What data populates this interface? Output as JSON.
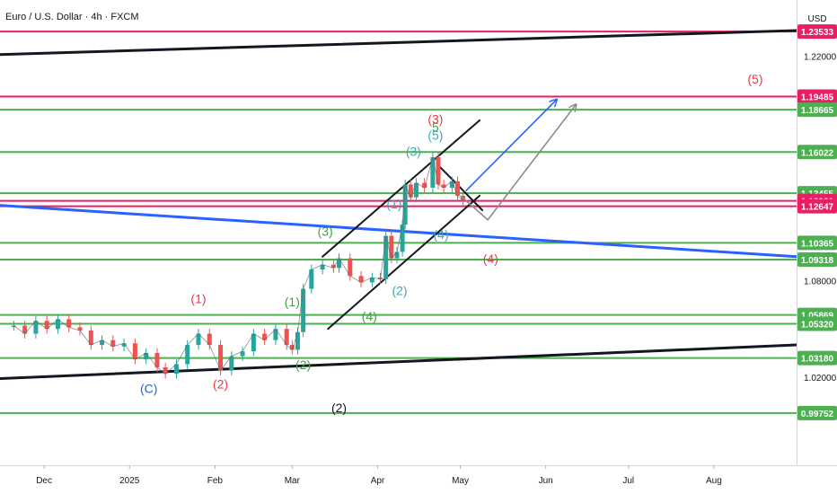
{
  "header": {
    "symbol_title": "Euro / U.S. Dollar · 4h · FXCM",
    "currency": "USD"
  },
  "colors": {
    "green_level": "#4caf50",
    "red_level": "#e91e63",
    "black_trend": "#131722",
    "blue_trend": "#2962ff",
    "projection_gray": "#8c8c8c",
    "candle_up": "#26a69a",
    "candle_down": "#ef5350",
    "wave_red": "#f23645",
    "wave_green": "#43a047",
    "wave_teal": "#3aa9b0",
    "wave_blue": "#1e66d0"
  },
  "chart_data": {
    "type": "candlestick",
    "title": "Euro / U.S. Dollar · 4h · FXCM",
    "y_unit": "USD",
    "x_tick_labels": [
      "Dec",
      "2025",
      "Feb",
      "Mar",
      "Apr",
      "May",
      "Jun",
      "Jul",
      "Aug"
    ],
    "y_axis_ticks": [
      {
        "value": 1.22,
        "label": "1.22000"
      },
      {
        "value": 1.08,
        "label": "1.08000"
      },
      {
        "value": 1.02,
        "label": "1.02000"
      }
    ],
    "price_levels": [
      {
        "value": 1.23533,
        "label": "1.23533",
        "color": "red"
      },
      {
        "value": 1.19485,
        "label": "1.19485",
        "color": "red"
      },
      {
        "value": 1.18665,
        "label": "1.18665",
        "color": "green"
      },
      {
        "value": 1.16022,
        "label": "1.16022",
        "color": "green"
      },
      {
        "value": 1.13455,
        "label": "1.13455",
        "color": "green"
      },
      {
        "value": 1.12981,
        "label": "1.12981",
        "color": "red"
      },
      {
        "value": 1.12647,
        "label": "1.12647",
        "color": "red"
      },
      {
        "value": 1.10365,
        "label": "1.10365",
        "color": "green"
      },
      {
        "value": 1.09318,
        "label": "1.09318",
        "color": "green"
      },
      {
        "value": 1.05869,
        "label": "1.05869",
        "color": "green"
      },
      {
        "value": 1.0532,
        "label": "1.05320",
        "color": "green"
      },
      {
        "value": 1.0318,
        "label": "1.03180",
        "color": "green"
      },
      {
        "value": 0.99752,
        "label": "0.99752",
        "color": "green"
      }
    ],
    "price_path": [
      {
        "x": "2024-11-20",
        "y": 1.052
      },
      {
        "x": "2024-11-24",
        "y": 1.047
      },
      {
        "x": "2024-11-28",
        "y": 1.055
      },
      {
        "x": "2024-12-02",
        "y": 1.05
      },
      {
        "x": "2024-12-06",
        "y": 1.056
      },
      {
        "x": "2024-12-10",
        "y": 1.051
      },
      {
        "x": "2024-12-14",
        "y": 1.049
      },
      {
        "x": "2024-12-18",
        "y": 1.04
      },
      {
        "x": "2024-12-22",
        "y": 1.043
      },
      {
        "x": "2024-12-26",
        "y": 1.039
      },
      {
        "x": "2024-12-30",
        "y": 1.041
      },
      {
        "x": "2025-01-03",
        "y": 1.031
      },
      {
        "x": "2025-01-07",
        "y": 1.035
      },
      {
        "x": "2025-01-11",
        "y": 1.026
      },
      {
        "x": "2025-01-14",
        "y": 1.022
      },
      {
        "x": "2025-01-18",
        "y": 1.028
      },
      {
        "x": "2025-01-22",
        "y": 1.04
      },
      {
        "x": "2025-01-26",
        "y": 1.047
      },
      {
        "x": "2025-01-30",
        "y": 1.04
      },
      {
        "x": "2025-02-03",
        "y": 1.024
      },
      {
        "x": "2025-02-07",
        "y": 1.033
      },
      {
        "x": "2025-02-11",
        "y": 1.036
      },
      {
        "x": "2025-02-15",
        "y": 1.047
      },
      {
        "x": "2025-02-19",
        "y": 1.043
      },
      {
        "x": "2025-02-23",
        "y": 1.05
      },
      {
        "x": "2025-02-27",
        "y": 1.04
      },
      {
        "x": "2025-03-01",
        "y": 1.037
      },
      {
        "x": "2025-03-03",
        "y": 1.048
      },
      {
        "x": "2025-03-05",
        "y": 1.075
      },
      {
        "x": "2025-03-08",
        "y": 1.087
      },
      {
        "x": "2025-03-12",
        "y": 1.09
      },
      {
        "x": "2025-03-16",
        "y": 1.088
      },
      {
        "x": "2025-03-18",
        "y": 1.094
      },
      {
        "x": "2025-03-22",
        "y": 1.083
      },
      {
        "x": "2025-03-26",
        "y": 1.079
      },
      {
        "x": "2025-03-30",
        "y": 1.082
      },
      {
        "x": "2025-04-02",
        "y": 1.081
      },
      {
        "x": "2025-04-04",
        "y": 1.108
      },
      {
        "x": "2025-04-06",
        "y": 1.094
      },
      {
        "x": "2025-04-08",
        "y": 1.098
      },
      {
        "x": "2025-04-10",
        "y": 1.115
      },
      {
        "x": "2025-04-11",
        "y": 1.14
      },
      {
        "x": "2025-04-13",
        "y": 1.132
      },
      {
        "x": "2025-04-15",
        "y": 1.141
      },
      {
        "x": "2025-04-18",
        "y": 1.138
      },
      {
        "x": "2025-04-21",
        "y": 1.157
      },
      {
        "x": "2025-04-23",
        "y": 1.14
      },
      {
        "x": "2025-04-25",
        "y": 1.138
      },
      {
        "x": "2025-04-28",
        "y": 1.142
      },
      {
        "x": "2025-04-30",
        "y": 1.133
      },
      {
        "x": "2025-05-02",
        "y": 1.13
      }
    ],
    "trendlines": [
      {
        "name": "upper-black",
        "color": "black",
        "p1": {
          "x": "2024-11-15",
          "y": 1.221
        },
        "p2": {
          "x": "2025-08-31",
          "y": 1.236
        }
      },
      {
        "name": "lower-black",
        "color": "black",
        "p1": {
          "x": "2024-11-15",
          "y": 1.019
        },
        "p2": {
          "x": "2025-08-31",
          "y": 1.04
        }
      },
      {
        "name": "blue-trend",
        "color": "blue",
        "p1": {
          "x": "2024-11-15",
          "y": 1.127
        },
        "p2": {
          "x": "2025-08-31",
          "y": 1.095
        }
      },
      {
        "name": "channel-upper",
        "color": "black",
        "p1": {
          "x": "2025-03-12",
          "y": 1.095
        },
        "p2": {
          "x": "2025-05-08",
          "y": 1.18
        }
      },
      {
        "name": "channel-lower",
        "color": "black",
        "p1": {
          "x": "2025-03-14",
          "y": 1.05
        },
        "p2": {
          "x": "2025-05-08",
          "y": 1.133
        }
      },
      {
        "name": "channel-end",
        "color": "black",
        "p1": {
          "x": "2025-04-23",
          "y": 1.152
        },
        "p2": {
          "x": "2025-05-09",
          "y": 1.124
        }
      }
    ],
    "projections": [
      {
        "name": "blue-projection",
        "color": "blue",
        "points": [
          {
            "x": "2025-05-03",
            "y": 1.136
          },
          {
            "x": "2025-06-05",
            "y": 1.193
          }
        ],
        "arrow": true
      },
      {
        "name": "gray-projection",
        "color": "gray",
        "points": [
          {
            "x": "2025-05-01",
            "y": 1.133
          },
          {
            "x": "2025-05-11",
            "y": 1.118
          },
          {
            "x": "2025-06-12",
            "y": 1.19
          }
        ],
        "arrow": true
      }
    ],
    "wave_labels": [
      {
        "text": "(5)",
        "x": "2025-08-16",
        "y": 1.203,
        "color": "red"
      },
      {
        "text": "(3)",
        "x": "2025-04-22",
        "y": 1.178,
        "color": "red"
      },
      {
        "text": "5",
        "x": "2025-04-22",
        "y": 1.173,
        "color": "green"
      },
      {
        "text": "(5)",
        "x": "2025-04-22",
        "y": 1.168,
        "color": "teal"
      },
      {
        "text": "(3)",
        "x": "2025-04-14",
        "y": 1.158,
        "color": "teal"
      },
      {
        "text": "(1)",
        "x": "2025-04-07",
        "y": 1.125,
        "color": "teal"
      },
      {
        "text": "(3)",
        "x": "2025-03-13",
        "y": 1.108,
        "color": "green"
      },
      {
        "text": "(4)",
        "x": "2025-04-24",
        "y": 1.106,
        "color": "teal"
      },
      {
        "text": "(4)",
        "x": "2025-05-12",
        "y": 1.091,
        "color": "red"
      },
      {
        "text": "(2)",
        "x": "2025-04-09",
        "y": 1.071,
        "color": "teal"
      },
      {
        "text": "(1)",
        "x": "2025-03-01",
        "y": 1.064,
        "color": "green"
      },
      {
        "text": "(1)",
        "x": "2025-01-26",
        "y": 1.066,
        "color": "red"
      },
      {
        "text": "(4)",
        "x": "2025-03-29",
        "y": 1.055,
        "color": "green"
      },
      {
        "text": "(2)",
        "x": "2025-03-05",
        "y": 1.025,
        "color": "green"
      },
      {
        "text": "(2)",
        "x": "2025-02-03",
        "y": 1.013,
        "color": "red"
      },
      {
        "text": "(C)",
        "x": "2025-01-08",
        "y": 1.01,
        "color": "blue"
      },
      {
        "text": "(2)",
        "x": "2025-03-18",
        "y": 0.998,
        "color": "black"
      }
    ],
    "x_range": [
      "2024-11-15",
      "2025-08-31"
    ],
    "y_range": [
      0.965,
      1.255
    ],
    "grid": false
  }
}
